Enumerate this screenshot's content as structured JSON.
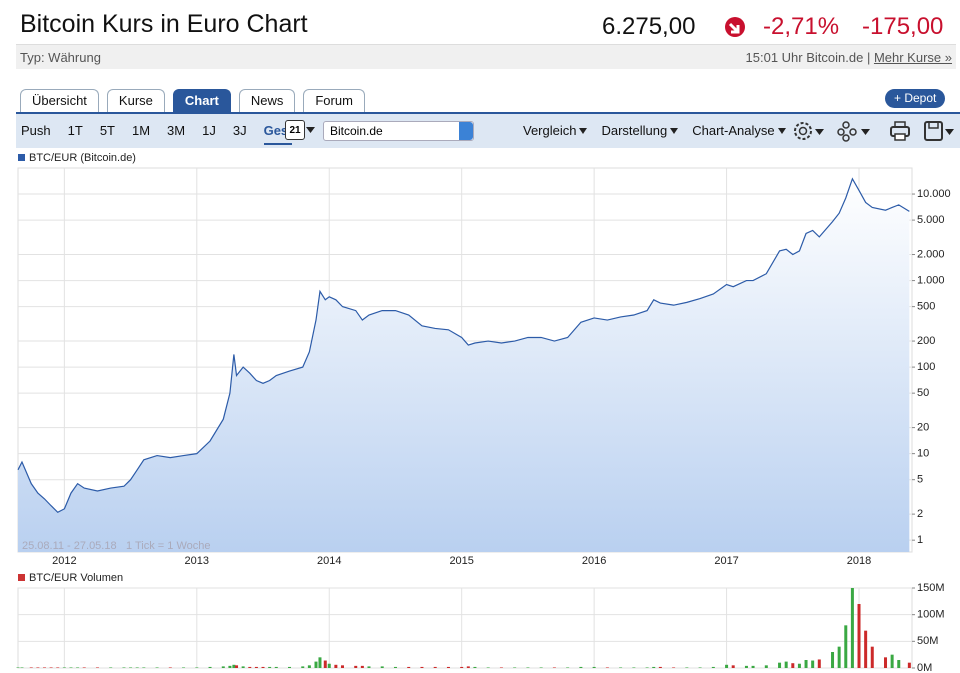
{
  "header": {
    "title": "Bitcoin Kurs in Euro Chart",
    "price": "6.275,00",
    "change_pct": "-2,71%",
    "change_abs": "-175,00",
    "type": "Typ: Währung",
    "time": "15:01 Uhr Bitcoin.de",
    "separator": "|",
    "more": "Mehr Kurse »"
  },
  "tabs": {
    "items": [
      "Übersicht",
      "Kurse",
      "Chart",
      "News",
      "Forum"
    ],
    "active": 2
  },
  "depot_button": "+ Depot",
  "toolbar": {
    "ranges": [
      "Push",
      "1T",
      "5T",
      "1M",
      "3M",
      "1J",
      "3J",
      "Ges."
    ],
    "active": 7,
    "calendar_day": "21",
    "source": "Bitcoin.de",
    "menus": [
      "Vergleich",
      "Darstellung",
      "Chart-Analyse"
    ]
  },
  "chart_data": [
    {
      "type": "area",
      "log_scale": true,
      "grid": true,
      "date_range": "25.08.11 - 27.05.18",
      "tick_note": "1 Tick = 1 Woche",
      "xlim": [
        2011.65,
        2018.4
      ],
      "xticks": [
        2012,
        2013,
        2014,
        2015,
        2016,
        2017,
        2018
      ],
      "ylim": [
        0.73,
        20000
      ],
      "yticks": [
        1,
        2,
        5,
        10,
        20,
        50,
        100,
        200,
        500,
        {
          "value": 1000,
          "label": "1.000"
        },
        {
          "value": 2000,
          "label": "2.000"
        },
        {
          "value": 5000,
          "label": "5.000"
        },
        {
          "value": 10000,
          "label": "10.000"
        }
      ],
      "x": [
        2011.65,
        2011.68,
        2011.75,
        2011.8,
        2011.85,
        2011.9,
        2011.95,
        2012.0,
        2012.05,
        2012.1,
        2012.15,
        2012.25,
        2012.35,
        2012.45,
        2012.5,
        2012.55,
        2012.6,
        2012.7,
        2012.8,
        2012.9,
        2013.0,
        2013.1,
        2013.2,
        2013.25,
        2013.28,
        2013.3,
        2013.35,
        2013.4,
        2013.45,
        2013.5,
        2013.55,
        2013.6,
        2013.7,
        2013.8,
        2013.85,
        2013.9,
        2013.93,
        2013.97,
        2014.0,
        2014.05,
        2014.1,
        2014.2,
        2014.25,
        2014.3,
        2014.4,
        2014.5,
        2014.6,
        2014.7,
        2014.8,
        2014.9,
        2015.0,
        2015.05,
        2015.1,
        2015.2,
        2015.3,
        2015.4,
        2015.5,
        2015.6,
        2015.7,
        2015.8,
        2015.9,
        2016.0,
        2016.1,
        2016.2,
        2016.3,
        2016.4,
        2016.45,
        2016.5,
        2016.6,
        2016.7,
        2016.8,
        2016.9,
        2017.0,
        2017.05,
        2017.15,
        2017.2,
        2017.3,
        2017.4,
        2017.45,
        2017.5,
        2017.55,
        2017.6,
        2017.65,
        2017.7,
        2017.8,
        2017.85,
        2017.9,
        2017.95,
        2018.0,
        2018.05,
        2018.1,
        2018.2,
        2018.25,
        2018.3,
        2018.38
      ],
      "series": [
        {
          "name": "BTC/EUR (Bitcoin.de)",
          "color": "#2c5ba8",
          "fill": "#b9d0f0",
          "values": [
            6.5,
            8,
            4.5,
            3.5,
            3,
            2.5,
            2.1,
            2.3,
            3.5,
            4.5,
            4,
            3.7,
            4,
            4.2,
            5,
            6.5,
            8.5,
            9.5,
            9,
            9.5,
            10,
            14,
            25,
            50,
            140,
            80,
            100,
            85,
            70,
            65,
            70,
            80,
            90,
            100,
            150,
            350,
            750,
            600,
            650,
            600,
            500,
            450,
            350,
            400,
            450,
            450,
            400,
            300,
            280,
            270,
            220,
            180,
            190,
            200,
            190,
            200,
            220,
            220,
            200,
            220,
            330,
            370,
            350,
            380,
            400,
            450,
            600,
            550,
            520,
            560,
            620,
            700,
            900,
            850,
            1000,
            1000,
            1200,
            2200,
            2300,
            2000,
            2200,
            3500,
            3800,
            3200,
            4800,
            6000,
            9000,
            15000,
            11000,
            8000,
            7000,
            6500,
            7000,
            7500,
            6300
          ]
        }
      ]
    },
    {
      "type": "bar",
      "grid": true,
      "xlim": [
        2011.65,
        2018.4
      ],
      "xticks": [
        2012,
        2013,
        2014,
        2015,
        2016,
        2017,
        2018
      ],
      "ylim": [
        0,
        150
      ],
      "yticks": [
        {
          "value": 0,
          "label": "0M"
        },
        {
          "value": 50,
          "label": "50M"
        },
        {
          "value": 100,
          "label": "100M"
        },
        {
          "value": 150,
          "label": "150M"
        }
      ],
      "up_color": "#3aa843",
      "down_color": "#cc2a2a",
      "x": [
        2011.65,
        2011.68,
        2011.75,
        2011.8,
        2011.85,
        2011.9,
        2011.95,
        2012.0,
        2012.05,
        2012.1,
        2012.15,
        2012.25,
        2012.35,
        2012.45,
        2012.5,
        2012.55,
        2012.6,
        2012.7,
        2012.8,
        2012.9,
        2013.0,
        2013.1,
        2013.2,
        2013.25,
        2013.28,
        2013.3,
        2013.35,
        2013.4,
        2013.45,
        2013.5,
        2013.55,
        2013.6,
        2013.7,
        2013.8,
        2013.85,
        2013.9,
        2013.93,
        2013.97,
        2014.0,
        2014.05,
        2014.1,
        2014.2,
        2014.25,
        2014.3,
        2014.4,
        2014.5,
        2014.6,
        2014.7,
        2014.8,
        2014.9,
        2015.0,
        2015.05,
        2015.1,
        2015.2,
        2015.3,
        2015.4,
        2015.5,
        2015.6,
        2015.7,
        2015.8,
        2015.9,
        2016.0,
        2016.1,
        2016.2,
        2016.3,
        2016.4,
        2016.45,
        2016.5,
        2016.6,
        2016.7,
        2016.8,
        2016.9,
        2017.0,
        2017.05,
        2017.15,
        2017.2,
        2017.3,
        2017.4,
        2017.45,
        2017.5,
        2017.55,
        2017.6,
        2017.65,
        2017.7,
        2017.8,
        2017.85,
        2017.9,
        2017.95,
        2018.0,
        2018.05,
        2018.1,
        2018.2,
        2018.25,
        2018.3,
        2018.38
      ],
      "series": [
        {
          "name": "BTC/EUR Volumen",
          "color": "#c33",
          "values": [
            1,
            1,
            1,
            1,
            1,
            1,
            1,
            1,
            1,
            1,
            1,
            1,
            1,
            1,
            1,
            1,
            1,
            1,
            1,
            1,
            1,
            2,
            3,
            4,
            6,
            5,
            3,
            2,
            2,
            2,
            2,
            2,
            2,
            3,
            5,
            12,
            20,
            14,
            8,
            6,
            5,
            4,
            4,
            3,
            3,
            2,
            2,
            2,
            2,
            2,
            2,
            3,
            2,
            1,
            1,
            1,
            1,
            1,
            1,
            1,
            2,
            2,
            1,
            1,
            1,
            1,
            2,
            2,
            1,
            1,
            1,
            2,
            6,
            5,
            4,
            4,
            5,
            10,
            12,
            9,
            8,
            15,
            14,
            16,
            30,
            40,
            80,
            150,
            120,
            70,
            40,
            20,
            25,
            15,
            10
          ]
        }
      ]
    }
  ]
}
